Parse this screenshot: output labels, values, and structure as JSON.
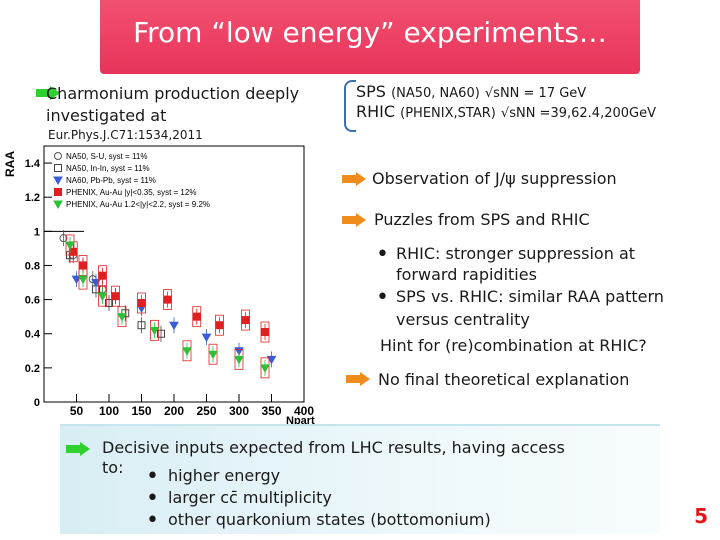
{
  "title": "From “low energy” experiments…",
  "left_intro": {
    "line1": "Charmonium production deeply",
    "line2": "investigated at"
  },
  "experiments": {
    "sps": {
      "label": "SPS",
      "detail": "(NA50, NA60)",
      "energy": "√sNN = 17 GeV"
    },
    "rhic": {
      "label": "RHIC",
      "detail": "(PHENIX,STAR)",
      "energy": "√sNN =39,62.4,200GeV"
    }
  },
  "reference": "Eur.Phys.J.C71:1534,2011",
  "observation": "Observation of J/ψ suppression",
  "puzzles": {
    "heading": "Puzzles from SPS and RHIC",
    "items": [
      {
        "line1": "RHIC: stronger suppression at",
        "line2": "forward rapidities"
      },
      {
        "line1": "SPS vs. RHIC: similar RAA pattern",
        "line2": "versus centrality"
      }
    ],
    "hint": "Hint for (re)combination at RHIC?"
  },
  "no_final": "No final theoretical explanation",
  "decisive": {
    "line1": "Decisive inputs expected from LHC results, having access",
    "line2": "to:",
    "items": [
      "higher energy",
      "larger cc̄ multiplicity",
      "other quarkonium states (bottomonium)"
    ]
  },
  "page_number": "5",
  "chart_data": {
    "type": "scatter",
    "ylabel": "RAA",
    "xlabel": "Npart",
    "xlim": [
      0,
      400
    ],
    "ylim": [
      0,
      1.5
    ],
    "x_ticks": [
      "50",
      "100",
      "150",
      "200",
      "250",
      "300",
      "350",
      "400"
    ],
    "y_ticks": [
      "0",
      "0.2",
      "0.4",
      "0.6",
      "0.8",
      "1",
      "1.2",
      "1.4"
    ],
    "legend": [
      "NA50, S-U, syst = 11%",
      "NA50, In-In, syst = 11%",
      "NA60, Pb-Pb, syst = 11%",
      "PHENIX, Au-Au |y|<0.35, syst = 12%",
      "PHENIX, Au-Au 1.2<|y|<2.2, syst = 9.2%"
    ],
    "series": [
      {
        "name": "NA50, S-U",
        "x": [
          30,
          45,
          60,
          75,
          90
        ],
        "y": [
          0.96,
          0.86,
          0.8,
          0.72,
          0.66
        ]
      },
      {
        "name": "NA50, In-In",
        "x": [
          40,
          60,
          80,
          100,
          125,
          150,
          180
        ],
        "y": [
          0.86,
          0.8,
          0.66,
          0.58,
          0.52,
          0.45,
          0.4
        ]
      },
      {
        "name": "NA60, Pb-Pb",
        "x": [
          50,
          80,
          110,
          150,
          200,
          250,
          300,
          350
        ],
        "y": [
          0.72,
          0.7,
          0.62,
          0.55,
          0.45,
          0.38,
          0.3,
          0.25
        ]
      },
      {
        "name": "PHENIX, Au-Au |y|<0.35",
        "x": [
          45,
          60,
          90,
          110,
          150,
          190,
          235,
          270,
          310,
          340
        ],
        "y": [
          0.88,
          0.8,
          0.74,
          0.62,
          0.58,
          0.6,
          0.5,
          0.45,
          0.48,
          0.41
        ]
      },
      {
        "name": "PHENIX, Au-Au 1.2<|y|<2.2",
        "x": [
          40,
          60,
          90,
          120,
          170,
          220,
          260,
          300,
          340
        ],
        "y": [
          0.92,
          0.72,
          0.62,
          0.5,
          0.42,
          0.3,
          0.28,
          0.25,
          0.2
        ]
      }
    ]
  }
}
